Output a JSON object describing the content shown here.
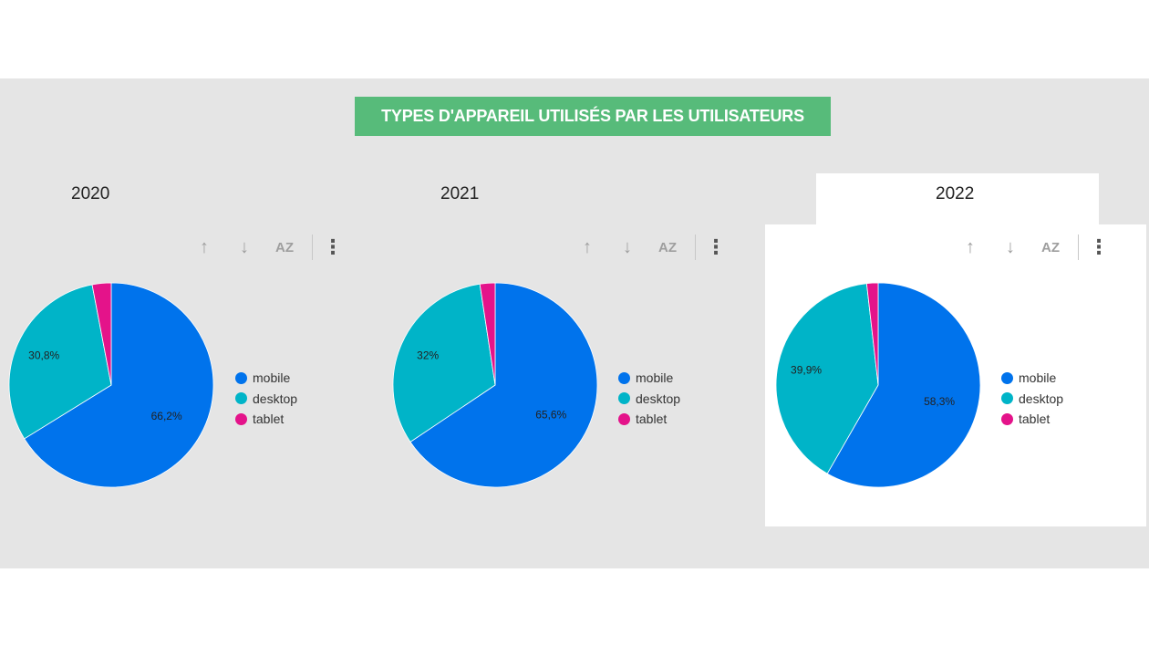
{
  "title": "TYPES D'APPAREIL UTILISÉS PAR LES UTILISATEURS",
  "colors": {
    "mobile": "#0073ec",
    "desktop": "#00b4c8",
    "tablet": "#e4138a",
    "banner": "#57bb7a"
  },
  "toolbar_icons": [
    "sort-ascending-icon",
    "sort-descending-icon",
    "sort-alphabetical-icon",
    "more-vert-icon"
  ],
  "toolbar_glyphs": {
    "up": "↑",
    "down": "↓",
    "az": "A͜Z",
    "more": "⋮"
  },
  "chart_data": [
    {
      "type": "pie",
      "title": "2020",
      "categories": [
        "mobile",
        "desktop",
        "tablet"
      ],
      "values": [
        66.2,
        30.8,
        3.0
      ],
      "data_labels": [
        "66,2%",
        "30,8%",
        ""
      ],
      "legend": "right"
    },
    {
      "type": "pie",
      "title": "2021",
      "categories": [
        "mobile",
        "desktop",
        "tablet"
      ],
      "values": [
        65.6,
        32.0,
        2.4
      ],
      "data_labels": [
        "65,6%",
        "32%",
        ""
      ],
      "legend": "right"
    },
    {
      "type": "pie",
      "title": "2022",
      "categories": [
        "mobile",
        "desktop",
        "tablet"
      ],
      "values": [
        58.3,
        39.9,
        1.8
      ],
      "data_labels": [
        "58,3%",
        "39,9%",
        ""
      ],
      "legend": "right"
    }
  ]
}
